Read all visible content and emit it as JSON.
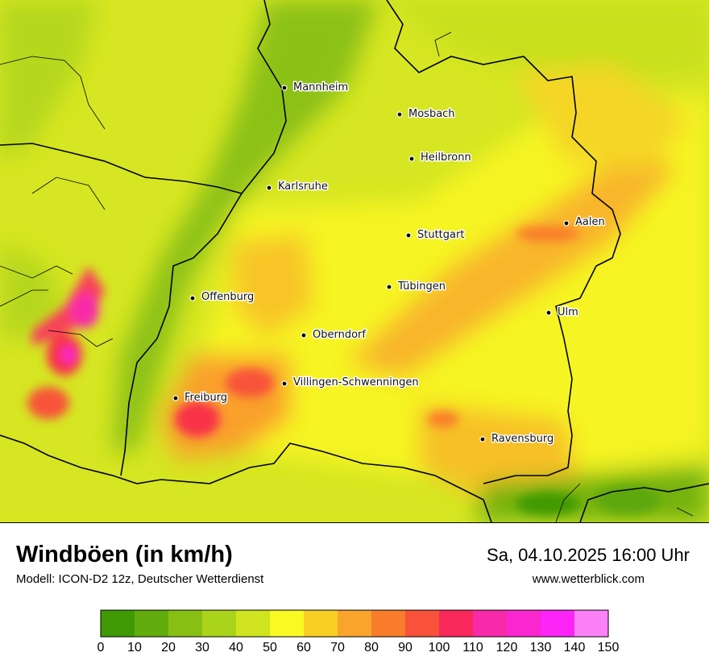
{
  "map": {
    "cities": [
      {
        "name": "Mannheim",
        "key": "mannheim"
      },
      {
        "name": "Mosbach",
        "key": "mosbach"
      },
      {
        "name": "Heilbronn",
        "key": "heilbronn"
      },
      {
        "name": "Karlsruhe",
        "key": "karlsruhe"
      },
      {
        "name": "Aalen",
        "key": "aalen"
      },
      {
        "name": "Stuttgart",
        "key": "stuttgart"
      },
      {
        "name": "Tübingen",
        "key": "tuebingen"
      },
      {
        "name": "Offenburg",
        "key": "offenburg"
      },
      {
        "name": "Ulm",
        "key": "ulm"
      },
      {
        "name": "Oberndorf",
        "key": "oberndorf"
      },
      {
        "name": "Villingen-Schwenningen",
        "key": "villingen"
      },
      {
        "name": "Freiburg",
        "key": "freiburg"
      },
      {
        "name": "Ravensburg",
        "key": "ravensburg"
      }
    ]
  },
  "footer": {
    "title": "Windböen (in km/h)",
    "model": "Modell: ICON-D2 12z, Deutscher Wetterdienst",
    "datetime": "Sa, 04.10.2025 16:00 Uhr",
    "website": "www.wetterblick.com"
  },
  "legend": {
    "ticks": [
      "0",
      "10",
      "20",
      "30",
      "40",
      "50",
      "60",
      "70",
      "80",
      "90",
      "100",
      "110",
      "120",
      "130",
      "140",
      "150"
    ],
    "colors": [
      "#3f9a06",
      "#63ac0d",
      "#88bf13",
      "#aad31b",
      "#d0e41f",
      "#fafa23",
      "#f9cf25",
      "#f9a52b",
      "#f97d2b",
      "#f8523a",
      "#f8285a",
      "#f82aa9",
      "#fa26cf",
      "#fc24f6",
      "#fc81f7"
    ]
  }
}
